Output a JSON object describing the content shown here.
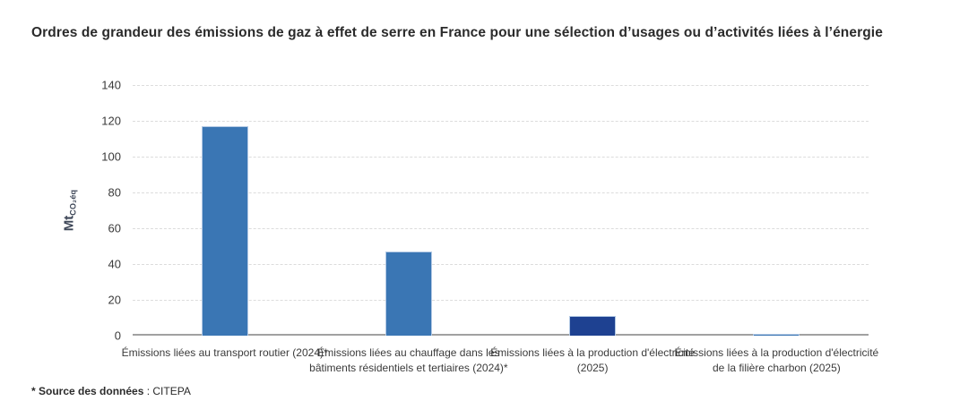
{
  "chart_data": {
    "type": "bar",
    "title": "Ordres de grandeur des émissions de gaz à effet de serre en France pour une sélection d’usages ou d’activités liées à l’énergie",
    "categories": [
      "Émissions liées au transport routier (2024)*",
      "Émissions liées au chauffage dans les bâtiments résidentiels et tertiaires (2024)*",
      "Émissions liées à la production d'électricité (2025)",
      "Émissions liées à la production d'électricité de la filière charbon (2025)"
    ],
    "values": [
      117,
      47,
      11,
      1
    ],
    "bar_colors": [
      "#3A76B4",
      "#3A76B4",
      "#1E4191",
      "#3A76B4"
    ],
    "xlabel": "",
    "ylabel": "Mt CO₂éq",
    "ylim": [
      0,
      140
    ],
    "yticks": [
      0,
      20,
      40,
      60,
      80,
      100,
      120,
      140
    ],
    "grid": "horizontal-dashed",
    "legend": "none"
  },
  "y_axis": {
    "label_main": "Mt",
    "label_sub": "CO₂éq"
  },
  "footer": {
    "source_label": "* Source des données",
    "source_value": " : CITEPA"
  },
  "colors": {
    "bar_primary": "#3A76B4",
    "bar_dark": "#1E4191",
    "bar_border": "#b3c9e4",
    "axis_line": "#a1a1a1",
    "gridline": "#dcdcdc",
    "text": "#3b3b3b",
    "title_text": "#2b2b2b",
    "y_title_text": "#3d4657",
    "background": "#ffffff"
  }
}
